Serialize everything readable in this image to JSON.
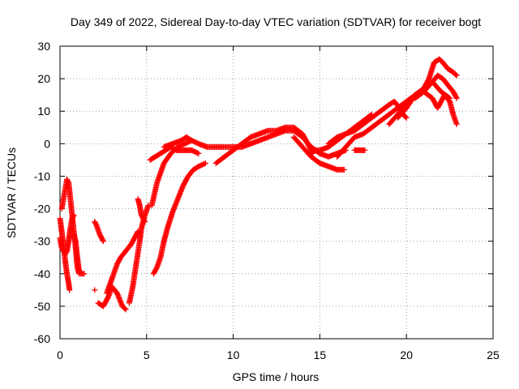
{
  "chart_data": {
    "type": "scatter",
    "title": "Day 349 of 2022, Sidereal Day-to-day VTEC variation (SDTVAR) for receiver bogt",
    "xlabel": "GPS time / hours",
    "ylabel": "SDTVAR / TECUs",
    "xlim": [
      0,
      25
    ],
    "ylim": [
      -60,
      30
    ],
    "xticks": [
      0,
      5,
      10,
      15,
      20,
      25
    ],
    "yticks": [
      -60,
      -50,
      -40,
      -30,
      -20,
      -10,
      0,
      10,
      20,
      30
    ],
    "grid": true,
    "marker": "+",
    "color": "#ff0000",
    "series": [
      {
        "name": "s1",
        "points": [
          [
            0,
            -23
          ],
          [
            0.1,
            -27
          ],
          [
            0.2,
            -31
          ],
          [
            0.3,
            -36
          ],
          [
            0.4,
            -40
          ],
          [
            0.5,
            -43
          ],
          [
            0.55,
            -45
          ]
        ]
      },
      {
        "name": "s2",
        "points": [
          [
            0,
            -29
          ],
          [
            0.1,
            -32
          ],
          [
            0.2,
            -33
          ],
          [
            0.3,
            -34
          ],
          [
            0.4,
            -33
          ],
          [
            0.5,
            -30
          ],
          [
            0.6,
            -26
          ],
          [
            0.7,
            -23
          ],
          [
            0.8,
            -22
          ]
        ]
      },
      {
        "name": "s3",
        "points": [
          [
            0.1,
            -20
          ],
          [
            0.2,
            -17
          ],
          [
            0.3,
            -14
          ],
          [
            0.4,
            -11
          ],
          [
            0.5,
            -12
          ],
          [
            0.6,
            -17
          ],
          [
            0.7,
            -22
          ],
          [
            0.8,
            -27
          ],
          [
            0.9,
            -32
          ],
          [
            1.0,
            -38
          ],
          [
            1.1,
            -40
          ]
        ]
      },
      {
        "name": "s4",
        "points": [
          [
            0.8,
            -28
          ],
          [
            0.9,
            -30
          ],
          [
            1.0,
            -35
          ],
          [
            1.1,
            -39
          ],
          [
            1.2,
            -40
          ],
          [
            1.4,
            -40
          ]
        ]
      },
      {
        "name": "s5",
        "points": [
          [
            2.0,
            -24
          ],
          [
            2.1,
            -25
          ],
          [
            2.3,
            -28
          ],
          [
            2.5,
            -30
          ]
        ]
      },
      {
        "name": "s6",
        "points": [
          [
            2.0,
            -45
          ]
        ]
      },
      {
        "name": "s7",
        "points": [
          [
            2.2,
            -49
          ],
          [
            2.5,
            -50
          ],
          [
            2.8,
            -47
          ],
          [
            3.0,
            -44
          ],
          [
            3.3,
            -46
          ],
          [
            3.6,
            -50
          ],
          [
            3.8,
            -51
          ]
        ]
      },
      {
        "name": "s8",
        "points": [
          [
            2.7,
            -46
          ],
          [
            2.9,
            -43
          ],
          [
            3.1,
            -40
          ],
          [
            3.3,
            -37
          ],
          [
            3.5,
            -35
          ],
          [
            3.8,
            -33
          ],
          [
            4.1,
            -31
          ],
          [
            4.3,
            -29
          ],
          [
            4.5,
            -27
          ]
        ]
      },
      {
        "name": "s9",
        "points": [
          [
            4.0,
            -49
          ],
          [
            4.2,
            -44
          ],
          [
            4.4,
            -37
          ],
          [
            4.6,
            -30
          ],
          [
            4.7,
            -26
          ],
          [
            4.9,
            -22
          ],
          [
            5.1,
            -19
          ]
        ]
      },
      {
        "name": "s10",
        "points": [
          [
            4.5,
            -17
          ],
          [
            4.6,
            -19
          ],
          [
            4.7,
            -22
          ],
          [
            4.9,
            -24
          ]
        ]
      },
      {
        "name": "s11",
        "points": [
          [
            5.2,
            -5
          ],
          [
            5.5,
            -4
          ],
          [
            5.8,
            -3
          ],
          [
            6.1,
            -2
          ],
          [
            6.4,
            -1
          ],
          [
            6.7,
            -2
          ],
          [
            7.0,
            -2
          ],
          [
            7.3,
            -2
          ],
          [
            7.6,
            -2
          ],
          [
            8.0,
            -3
          ]
        ]
      },
      {
        "name": "s12",
        "points": [
          [
            5.3,
            -19
          ],
          [
            5.6,
            -12
          ],
          [
            6.0,
            -6
          ],
          [
            6.4,
            -3
          ],
          [
            6.8,
            -1
          ],
          [
            7.2,
            0
          ],
          [
            7.6,
            1
          ],
          [
            8.0,
            0
          ],
          [
            8.5,
            -1
          ],
          [
            9.0,
            -1
          ],
          [
            9.5,
            -1
          ],
          [
            10.0,
            -1
          ],
          [
            10.5,
            -1
          ],
          [
            11.0,
            0
          ],
          [
            11.5,
            1
          ],
          [
            12.0,
            2
          ],
          [
            12.5,
            3
          ],
          [
            13.0,
            4
          ],
          [
            13.5,
            4
          ],
          [
            14.0,
            2
          ],
          [
            14.5,
            -1
          ],
          [
            15.0,
            -3
          ],
          [
            15.5,
            -4
          ],
          [
            16.0,
            -3
          ],
          [
            16.5,
            -2
          ]
        ]
      },
      {
        "name": "s13",
        "points": [
          [
            5.4,
            -40
          ],
          [
            5.6,
            -38
          ],
          [
            5.8,
            -35
          ],
          [
            6.0,
            -30
          ],
          [
            6.2,
            -26
          ],
          [
            6.5,
            -21
          ],
          [
            6.8,
            -17
          ],
          [
            7.1,
            -13
          ],
          [
            7.4,
            -10
          ],
          [
            7.7,
            -8
          ],
          [
            8.0,
            -7
          ],
          [
            8.4,
            -6
          ]
        ]
      },
      {
        "name": "s14",
        "points": [
          [
            6.0,
            -1
          ],
          [
            6.5,
            0
          ],
          [
            7.0,
            1
          ],
          [
            7.3,
            2
          ],
          [
            7.6,
            1
          ]
        ]
      },
      {
        "name": "s15",
        "points": [
          [
            9.0,
            -6
          ],
          [
            9.5,
            -4
          ],
          [
            10.0,
            -2
          ],
          [
            10.5,
            0
          ],
          [
            11.0,
            2
          ],
          [
            11.5,
            3
          ],
          [
            12.0,
            4
          ],
          [
            12.5,
            4
          ],
          [
            13.0,
            5
          ],
          [
            13.5,
            5
          ],
          [
            14.0,
            3
          ],
          [
            14.3,
            0
          ],
          [
            14.6,
            -3
          ]
        ]
      },
      {
        "name": "s16",
        "points": [
          [
            13.5,
            2
          ],
          [
            14.0,
            -1
          ],
          [
            14.5,
            -4
          ],
          [
            15.0,
            -6
          ],
          [
            15.5,
            -7
          ],
          [
            16.0,
            -8
          ],
          [
            16.4,
            -8
          ]
        ]
      },
      {
        "name": "s17",
        "points": [
          [
            14.5,
            -2
          ],
          [
            15.0,
            -2
          ],
          [
            15.5,
            -1
          ],
          [
            16.0,
            1
          ],
          [
            16.5,
            3
          ],
          [
            17.0,
            5
          ],
          [
            17.5,
            7
          ],
          [
            18.0,
            9
          ]
        ]
      },
      {
        "name": "s18",
        "points": [
          [
            15.5,
            0
          ],
          [
            16.0,
            2
          ],
          [
            16.5,
            3
          ],
          [
            17.0,
            4
          ],
          [
            17.5,
            6
          ],
          [
            18.0,
            8
          ],
          [
            18.5,
            10
          ],
          [
            19.0,
            12
          ],
          [
            19.3,
            13
          ],
          [
            19.6,
            11
          ],
          [
            19.8,
            9
          ],
          [
            20.0,
            8
          ]
        ]
      },
      {
        "name": "s19",
        "points": [
          [
            16.0,
            -4
          ],
          [
            16.5,
            -1
          ],
          [
            17.0,
            2
          ],
          [
            17.5,
            3
          ],
          [
            18.0,
            5
          ],
          [
            18.5,
            7
          ],
          [
            19.0,
            9
          ],
          [
            19.5,
            11
          ],
          [
            20.0,
            13
          ],
          [
            20.5,
            15
          ],
          [
            21.0,
            17
          ],
          [
            21.5,
            19
          ],
          [
            22.0,
            16
          ],
          [
            22.5,
            14
          ]
        ]
      },
      {
        "name": "s20",
        "points": [
          [
            17.0,
            -2
          ],
          [
            17.3,
            -2
          ],
          [
            17.6,
            -2
          ]
        ]
      },
      {
        "name": "s21",
        "points": [
          [
            19.0,
            6
          ],
          [
            19.5,
            9
          ],
          [
            20.0,
            12
          ],
          [
            20.5,
            15
          ],
          [
            21.0,
            17
          ],
          [
            21.3,
            20
          ],
          [
            21.6,
            25
          ],
          [
            21.9,
            26
          ],
          [
            22.1,
            25
          ],
          [
            22.4,
            23
          ],
          [
            22.7,
            22
          ],
          [
            22.9,
            21
          ]
        ]
      },
      {
        "name": "s22",
        "points": [
          [
            19.5,
            8
          ],
          [
            20.0,
            11
          ],
          [
            20.5,
            15
          ],
          [
            21.0,
            16
          ],
          [
            21.5,
            14
          ],
          [
            21.8,
            11
          ],
          [
            22.0,
            13
          ],
          [
            22.2,
            15
          ],
          [
            22.5,
            13
          ],
          [
            22.7,
            9
          ],
          [
            22.9,
            6
          ]
        ]
      },
      {
        "name": "s23",
        "points": [
          [
            20.5,
            14
          ],
          [
            21.0,
            16
          ],
          [
            21.5,
            19
          ],
          [
            21.8,
            21
          ],
          [
            22.1,
            20
          ],
          [
            22.4,
            18
          ],
          [
            22.7,
            16
          ],
          [
            22.9,
            14
          ]
        ]
      }
    ]
  }
}
